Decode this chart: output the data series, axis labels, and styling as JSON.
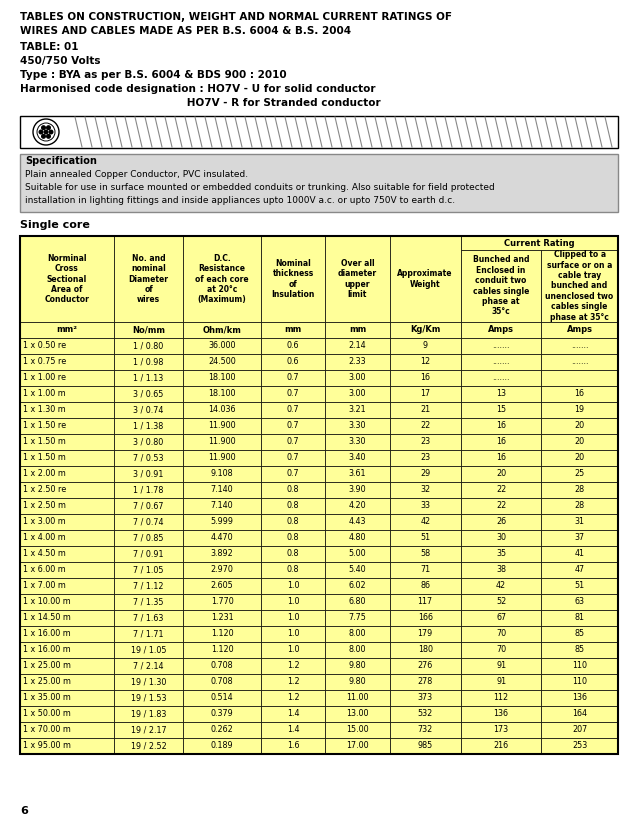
{
  "page_bg": "#ffffff",
  "title_line1": "TABLES ON CONSTRUCTION, WEIGHT AND NORMAL CURRENT RATINGS OF",
  "title_line2": "WIRES AND CABLES MADE AS PER B.S. 6004 & B.S. 2004",
  "table_label": "TABLE: 01",
  "voltage": "450/750 Volts",
  "type_line": "Type : BYA as per B.S. 6004 & BDS 900 : 2010",
  "harmcode_line1": "Harmonised code designation : HO7V - U for solid conductor",
  "harmcode_line2": "                                              HO7V - R for Stranded conductor",
  "spec_title": "Specification",
  "spec_text1": "Plain annealed Copper Conductor, PVC insulated.",
  "spec_text2": "Suitable for use in surface mounted or embedded conduits or trunking. Also suitable for field protected",
  "spec_text3": "installation in lighting fittings and inside appliances upto 1000V a.c. or upto 750V to earth d.c.",
  "section_title": "Single core",
  "table_bg": "#ffff99",
  "col_headers": [
    "Norminal\nCross\nSectional\nArea of\nConductor",
    "No. and\nnominal\nDiameter\nof\nwires",
    "D.C.\nResistance\nof each core\nat 20°c\n(Maximum)",
    "Nominal\nthickness\nof\nInsulation",
    "Over all\ndiameter\nupper\nlimit",
    "Approximate\nWeight",
    "Bunched and\nEnclosed in\nconduit two\ncables single\nphase at\n35°c",
    "Clipped to a\nsurface or on a\ncable tray\nbunched and\nunenclosed two\ncables single\nphase at 35°c"
  ],
  "unit_headers": [
    "mm²",
    "No/mm",
    "Ohm/km",
    "mm",
    "mm",
    "Kg/Km",
    "Amps",
    "Amps"
  ],
  "current_rating_header": "Current Rating",
  "rows": [
    [
      "1 x 0.50 re",
      "1 / 0.80",
      "36.000",
      "0.6",
      "2.14",
      "9",
      ".......",
      "......."
    ],
    [
      "1 x 0.75 re",
      "1 / 0.98",
      "24.500",
      "0.6",
      "2.33",
      "12",
      ".......",
      "......."
    ],
    [
      "1 x 1.00 re",
      "1 / 1.13",
      "18.100",
      "0.7",
      "3.00",
      "16",
      ".......",
      ""
    ],
    [
      "1 x 1.00 m",
      "3 / 0.65",
      "18.100",
      "0.7",
      "3.00",
      "17",
      "13",
      "16"
    ],
    [
      "1 x 1.30 m",
      "3 / 0.74",
      "14.036",
      "0.7",
      "3.21",
      "21",
      "15",
      "19"
    ],
    [
      "1 x 1.50 re",
      "1 / 1.38",
      "11.900",
      "0.7",
      "3.30",
      "22",
      "16",
      "20"
    ],
    [
      "1 x 1.50 m",
      "3 / 0.80",
      "11.900",
      "0.7",
      "3.30",
      "23",
      "16",
      "20"
    ],
    [
      "1 x 1.50 m",
      "7 / 0.53",
      "11.900",
      "0.7",
      "3.40",
      "23",
      "16",
      "20"
    ],
    [
      "1 x 2.00 m",
      "3 / 0.91",
      "9.108",
      "0.7",
      "3.61",
      "29",
      "20",
      "25"
    ],
    [
      "1 x 2.50 re",
      "1 / 1.78",
      "7.140",
      "0.8",
      "3.90",
      "32",
      "22",
      "28"
    ],
    [
      "1 x 2.50 m",
      "7 / 0.67",
      "7.140",
      "0.8",
      "4.20",
      "33",
      "22",
      "28"
    ],
    [
      "1 x 3.00 m",
      "7 / 0.74",
      "5.999",
      "0.8",
      "4.43",
      "42",
      "26",
      "31"
    ],
    [
      "1 x 4.00 m",
      "7 / 0.85",
      "4.470",
      "0.8",
      "4.80",
      "51",
      "30",
      "37"
    ],
    [
      "1 x 4.50 m",
      "7 / 0.91",
      "3.892",
      "0.8",
      "5.00",
      "58",
      "35",
      "41"
    ],
    [
      "1 x 6.00 m",
      "7 / 1.05",
      "2.970",
      "0.8",
      "5.40",
      "71",
      "38",
      "47"
    ],
    [
      "1 x 7.00 m",
      "7 / 1.12",
      "2.605",
      "1.0",
      "6.02",
      "86",
      "42",
      "51"
    ],
    [
      "1 x 10.00 m",
      "7 / 1.35",
      "1.770",
      "1.0",
      "6.80",
      "117",
      "52",
      "63"
    ],
    [
      "1 x 14.50 m",
      "7 / 1.63",
      "1.231",
      "1.0",
      "7.75",
      "166",
      "67",
      "81"
    ],
    [
      "1 x 16.00 m",
      "7 / 1.71",
      "1.120",
      "1.0",
      "8.00",
      "179",
      "70",
      "85"
    ],
    [
      "1 x 16.00 m",
      "19 / 1.05",
      "1.120",
      "1.0",
      "8.00",
      "180",
      "70",
      "85"
    ],
    [
      "1 x 25.00 m",
      "7 / 2.14",
      "0.708",
      "1.2",
      "9.80",
      "276",
      "91",
      "110"
    ],
    [
      "1 x 25.00 m",
      "19 / 1.30",
      "0.708",
      "1.2",
      "9.80",
      "278",
      "91",
      "110"
    ],
    [
      "1 x 35.00 m",
      "19 / 1.53",
      "0.514",
      "1.2",
      "11.00",
      "373",
      "112",
      "136"
    ],
    [
      "1 x 50.00 m",
      "19 / 1.83",
      "0.379",
      "1.4",
      "13.00",
      "532",
      "136",
      "164"
    ],
    [
      "1 x 70.00 m",
      "19 / 2.17",
      "0.262",
      "1.4",
      "15.00",
      "732",
      "173",
      "207"
    ],
    [
      "1 x 95.00 m",
      "19 / 2.52",
      "0.189",
      "1.6",
      "17.00",
      "985",
      "216",
      "253"
    ]
  ],
  "footer_num": "6"
}
